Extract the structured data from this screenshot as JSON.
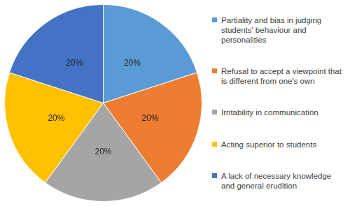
{
  "chart_data": {
    "type": "pie",
    "categories": [
      "Partiality and bias in judging students' behaviour and personalities",
      "Refusal to accept a viewpoint that is different from one's own",
      "Irritability in communication",
      "Acting superior to students",
      "A lack of necessary knowledge and general erudition"
    ],
    "values": [
      20,
      20,
      20,
      20,
      20
    ],
    "value_labels": [
      "20%",
      "20%",
      "20%",
      "20%",
      "20%"
    ],
    "colors": [
      "#5b9bd5",
      "#ed7d31",
      "#a5a5a5",
      "#ffc000",
      "#4472c4"
    ],
    "data_labels": true,
    "legend": "right"
  }
}
